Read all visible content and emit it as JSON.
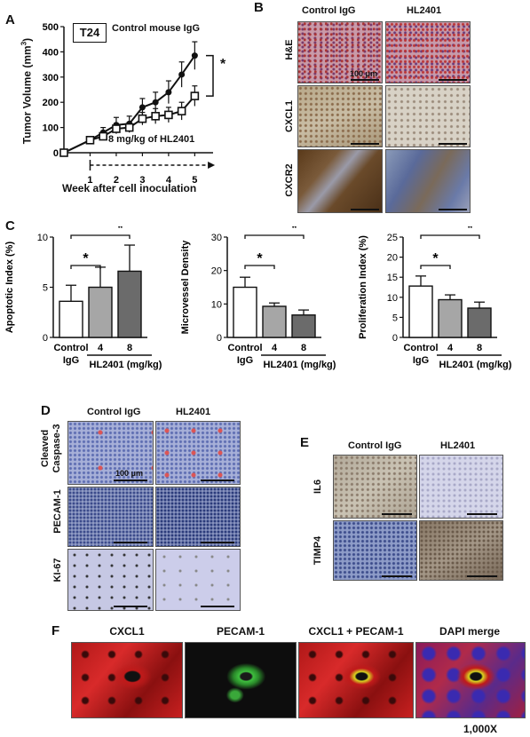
{
  "panel_labels": {
    "a": "A",
    "b": "B",
    "c": "C",
    "d": "D",
    "e": "E",
    "f": "F"
  },
  "panelA": {
    "box_label": "T24",
    "ylabel": "Tumor Volume (mm",
    "ylabel_sup": "3",
    "ylabel_end": ")",
    "xlabel": "Week after cell inoculation",
    "upper_label": "Control mouse IgG",
    "lower_label": "8 mg/kg of HL2401",
    "sig": "*",
    "yticks": [
      "0",
      "100",
      "200",
      "300",
      "400",
      "500"
    ],
    "xticks": [
      "1",
      "2",
      "3",
      "4",
      "5"
    ]
  },
  "panelB": {
    "col_headers": [
      "Control IgG",
      "HL2401"
    ],
    "row_labels": [
      "H&E",
      "CXCL1",
      "CXCR2"
    ],
    "scale_text": "100 μm"
  },
  "panelC": {
    "sig": "*",
    "control_label": "Control",
    "igg_label": "IgG",
    "group_label": "HL2401 (mg/kg)",
    "dose_labels": [
      "4",
      "8"
    ]
  },
  "panelD": {
    "col_headers": [
      "Control IgG",
      "HL2401"
    ],
    "row_labels": [
      "Cleaved Caspase-3",
      "PECAM-1",
      "KI-67"
    ],
    "row_label_lines": [
      "Cleaved",
      "Caspase-3"
    ],
    "scale_text": "100 μm"
  },
  "panelE": {
    "col_headers": [
      "Control IgG",
      "HL2401"
    ],
    "row_labels": [
      "IL6",
      "TIMP4"
    ]
  },
  "panelF": {
    "labels": [
      "CXCL1",
      "PECAM-1",
      "CXCL1 + PECAM-1",
      "DAPI merge"
    ],
    "magnification": "1,000X"
  },
  "chart_data": [
    {
      "type": "line",
      "panel": "A",
      "x": [
        0,
        1,
        1.5,
        2,
        2.5,
        3,
        3.5,
        4,
        4.5,
        5
      ],
      "series": [
        {
          "name": "Control mouse IgG",
          "values": [
            0,
            50,
            80,
            110,
            115,
            180,
            200,
            240,
            310,
            385
          ],
          "errors": [
            5,
            10,
            20,
            30,
            30,
            35,
            40,
            45,
            50,
            55
          ]
        },
        {
          "name": "8 mg/kg of HL2401",
          "values": [
            0,
            50,
            65,
            95,
            100,
            135,
            145,
            150,
            165,
            225
          ],
          "errors": [
            5,
            10,
            15,
            20,
            20,
            25,
            30,
            30,
            35,
            40
          ]
        }
      ],
      "ylabel": "Tumor Volume (mm3)",
      "xlabel": "Week after cell inoculation",
      "ylim": [
        0,
        500
      ],
      "xlim": [
        0,
        5.7
      ],
      "grid": false,
      "legend": "inline labels"
    },
    {
      "type": "bar",
      "panel": "C1",
      "categories": [
        "Control IgG",
        "4",
        "8"
      ],
      "values": [
        3.6,
        5.0,
        6.6
      ],
      "errors": [
        1.6,
        2.0,
        2.6
      ],
      "bar_colors": [
        "#ffffff",
        "#a6a6a6",
        "#6b6b6b"
      ],
      "ylabel": "Apoptotic Index (%)",
      "yticks": [
        0,
        5,
        10
      ],
      "ylim": [
        0,
        10
      ]
    },
    {
      "type": "bar",
      "panel": "C2",
      "categories": [
        "Control IgG",
        "4",
        "8"
      ],
      "values": [
        15.0,
        9.3,
        6.7
      ],
      "errors": [
        3.0,
        1.0,
        1.5
      ],
      "bar_colors": [
        "#ffffff",
        "#a6a6a6",
        "#6b6b6b"
      ],
      "ylabel": "Microvessel Density",
      "yticks": [
        0,
        10,
        20,
        30
      ],
      "ylim": [
        0,
        30
      ]
    },
    {
      "type": "bar",
      "panel": "C3",
      "categories": [
        "Control IgG",
        "4",
        "8"
      ],
      "values": [
        12.8,
        9.4,
        7.3
      ],
      "errors": [
        2.5,
        1.2,
        1.5
      ],
      "bar_colors": [
        "#ffffff",
        "#a6a6a6",
        "#6b6b6b"
      ],
      "ylabel": "Proliferation Index (%)",
      "yticks": [
        0,
        5,
        10,
        15,
        20,
        25
      ],
      "ylim": [
        0,
        25
      ]
    }
  ]
}
